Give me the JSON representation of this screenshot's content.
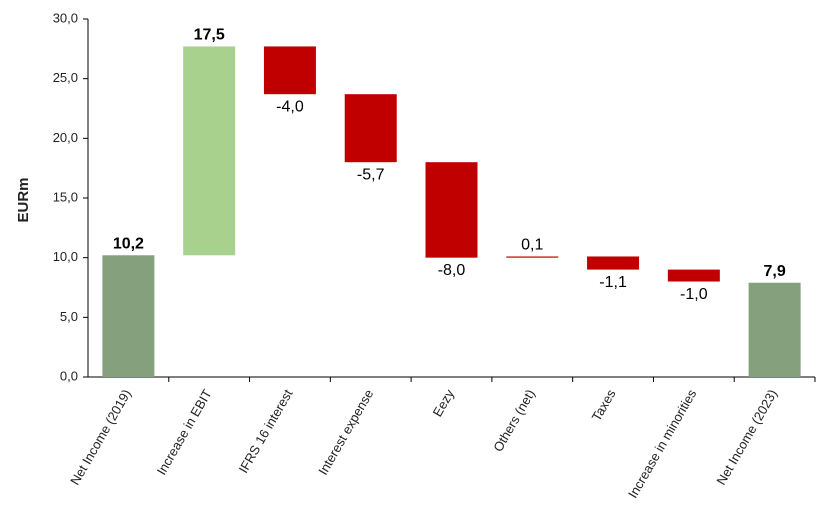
{
  "chart_data": {
    "type": "waterfall",
    "y_label": "EURm",
    "categories": [
      "Net Income (2019)",
      "Increase in EBIT",
      "IFRS 16 interest",
      "Interest expense",
      "Eezy",
      "Others (net)",
      "Taxes",
      "Increase in minorities",
      "Net Income (2023)"
    ],
    "values": [
      10.2,
      17.5,
      -4.0,
      -5.7,
      -8.0,
      0.1,
      -1.1,
      -1.0,
      7.9
    ],
    "value_labels": [
      "10,2",
      "17,5",
      "-4,0",
      "-5,7",
      "-8,0",
      "0,1",
      "-1,1",
      "-1,0",
      "7,9"
    ],
    "colors": [
      "#84a07c",
      "#a9d18e",
      "#c00000",
      "#c00000",
      "#c00000",
      "#c00000",
      "#c00000",
      "#c00000",
      "#84a07c"
    ],
    "ylim": [
      0,
      30
    ],
    "yticks": [
      {
        "value": 0,
        "label": "0,0"
      },
      {
        "value": 5,
        "label": "5,0"
      },
      {
        "value": 10,
        "label": "10,0"
      },
      {
        "value": 15,
        "label": "15,0"
      },
      {
        "value": 20,
        "label": "20,0"
      },
      {
        "value": 25,
        "label": "25,0"
      },
      {
        "value": 30,
        "label": "30,0"
      }
    ],
    "grid": false
  }
}
